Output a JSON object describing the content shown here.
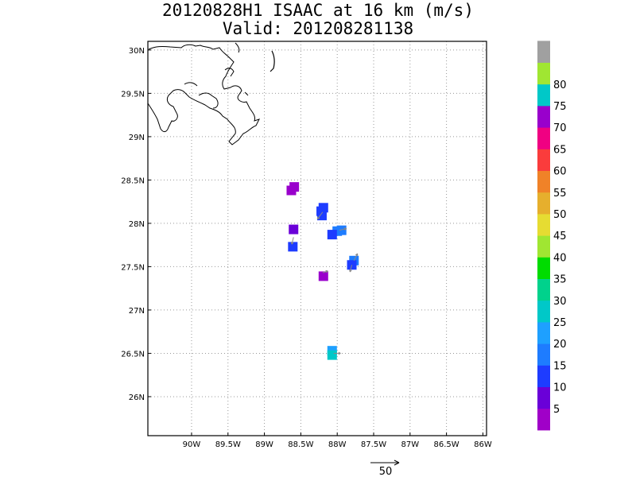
{
  "title": {
    "line1": "20120828H1 ISAAC at 16 km (m/s)",
    "line2": "Valid: 201208281138"
  },
  "map": {
    "lon_range": [
      -90.6,
      -85.95
    ],
    "lat_range": [
      25.55,
      30.1
    ],
    "lon_ticks": [
      {
        "value": -90.0,
        "label": "90W"
      },
      {
        "value": -89.5,
        "label": "89.5W"
      },
      {
        "value": -89.0,
        "label": "89W"
      },
      {
        "value": -88.5,
        "label": "88.5W"
      },
      {
        "value": -88.0,
        "label": "88W"
      },
      {
        "value": -87.5,
        "label": "87.5W"
      },
      {
        "value": -87.0,
        "label": "87W"
      },
      {
        "value": -86.5,
        "label": "86.5W"
      },
      {
        "value": -86.0,
        "label": "86W"
      }
    ],
    "lat_ticks": [
      {
        "value": 26.0,
        "label": "26N"
      },
      {
        "value": 26.5,
        "label": "26.5N"
      },
      {
        "value": 27.0,
        "label": "27N"
      },
      {
        "value": 27.5,
        "label": "27.5N"
      },
      {
        "value": 28.0,
        "label": "28N"
      },
      {
        "value": 28.5,
        "label": "28.5N"
      },
      {
        "value": 29.0,
        "label": "29N"
      },
      {
        "value": 29.5,
        "label": "29.5N"
      },
      {
        "value": 30.0,
        "label": "30N"
      }
    ],
    "grid": "dotted",
    "coastline_color": "#000000"
  },
  "wind_cells": [
    {
      "lon": -88.63,
      "lat": 28.38,
      "speed": 67,
      "color": "#9900cc"
    },
    {
      "lon": -88.59,
      "lat": 28.42,
      "speed": 67,
      "color": "#9900cc"
    },
    {
      "lon": -88.22,
      "lat": 28.14,
      "speed": 12,
      "color": "#1e3cff"
    },
    {
      "lon": -88.19,
      "lat": 28.18,
      "speed": 12,
      "color": "#1e3cff"
    },
    {
      "lon": -88.21,
      "lat": 28.09,
      "speed": 12,
      "color": "#1e3cff"
    },
    {
      "lon": -88.6,
      "lat": 27.93,
      "speed": 8,
      "color": "#6a00d8"
    },
    {
      "lon": -88.0,
      "lat": 27.91,
      "speed": 17,
      "color": "#1e7cff"
    },
    {
      "lon": -87.94,
      "lat": 27.92,
      "speed": 17,
      "color": "#1e7cff"
    },
    {
      "lon": -88.07,
      "lat": 27.87,
      "speed": 12,
      "color": "#1e3cff"
    },
    {
      "lon": -88.61,
      "lat": 27.73,
      "speed": 12,
      "color": "#1e3cff"
    },
    {
      "lon": -87.77,
      "lat": 27.57,
      "speed": 17,
      "color": "#1e7cff"
    },
    {
      "lon": -87.8,
      "lat": 27.52,
      "speed": 12,
      "color": "#1e3cff"
    },
    {
      "lon": -88.19,
      "lat": 27.39,
      "speed": 68,
      "color": "#9900cc"
    },
    {
      "lon": -88.07,
      "lat": 26.53,
      "speed": 20,
      "color": "#1ea0ff"
    },
    {
      "lon": -88.07,
      "lat": 26.48,
      "speed": 25,
      "color": "#00c8c8"
    }
  ],
  "wind_vectors": [
    {
      "lon": -88.2,
      "lat": 28.13,
      "u": -3,
      "v": -4
    },
    {
      "lon": -87.97,
      "lat": 27.92,
      "u": 4,
      "v": 1
    },
    {
      "lon": -88.6,
      "lat": 27.84,
      "u": -1,
      "v": -4
    },
    {
      "lon": -87.77,
      "lat": 27.57,
      "u": 2,
      "v": 4
    },
    {
      "lon": -87.8,
      "lat": 27.52,
      "u": -1,
      "v": -4
    },
    {
      "lon": -88.2,
      "lat": 27.43,
      "u": 3,
      "v": 1
    },
    {
      "lon": -88.05,
      "lat": 26.5,
      "u": 4,
      "v": 0
    }
  ],
  "colorbar": {
    "colors": [
      "#a000c8",
      "#6a00d8",
      "#1e3cff",
      "#1e7cff",
      "#1ea0ff",
      "#00c8c8",
      "#00d28c",
      "#00dc00",
      "#a0e632",
      "#e6dc32",
      "#e6af2d",
      "#f08228",
      "#fa3c3c",
      "#f00082",
      "#9900cc",
      "#00c8c8",
      "#a0e632",
      "#a0a0a0"
    ],
    "labels": [
      "5",
      "10",
      "15",
      "20",
      "25",
      "30",
      "35",
      "40",
      "45",
      "50",
      "55",
      "60",
      "65",
      "70",
      "75",
      "80"
    ]
  },
  "reference_vector": {
    "label": "50"
  }
}
